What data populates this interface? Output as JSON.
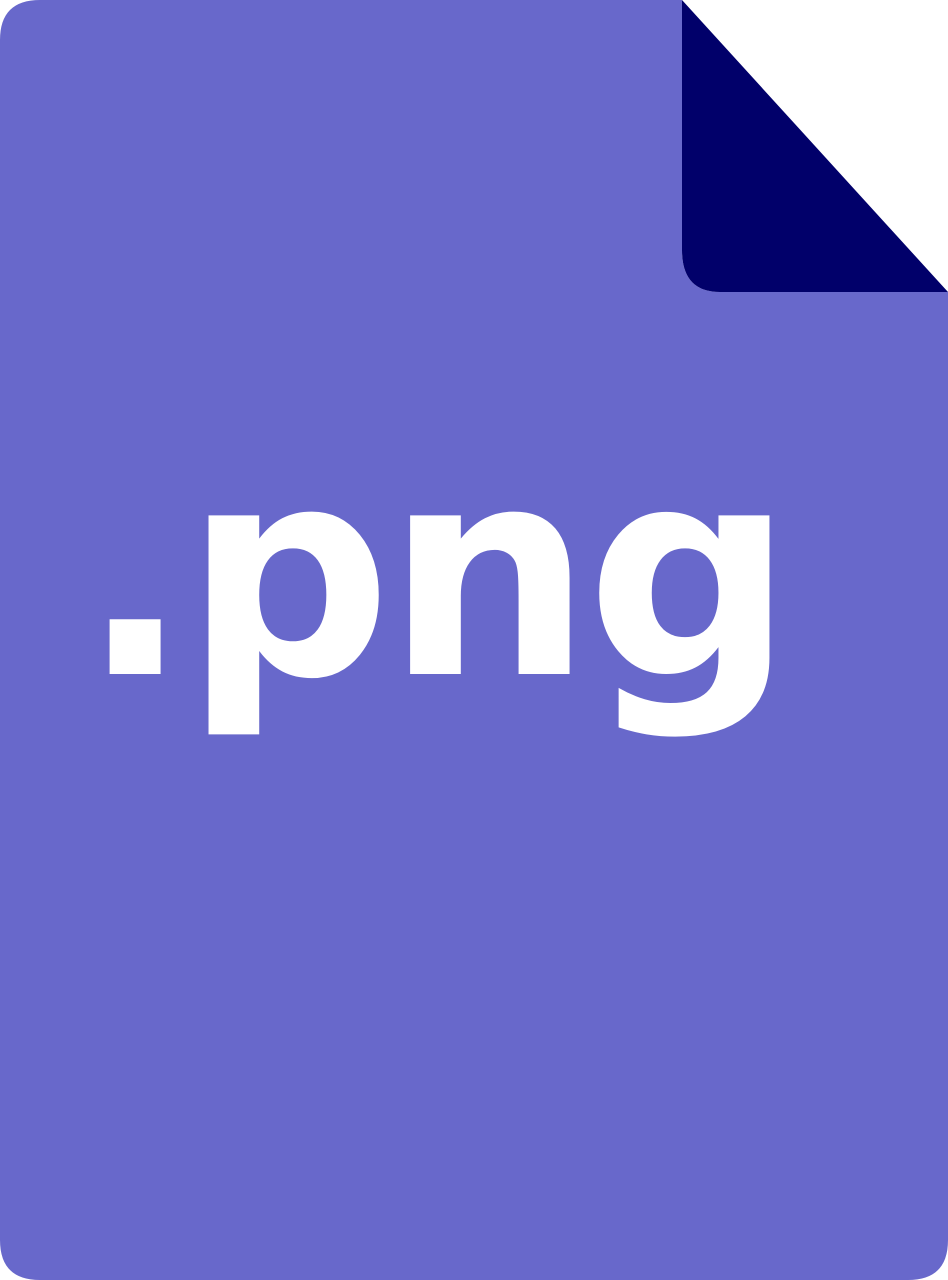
{
  "file_icon": {
    "extension_text": ".png",
    "icon_name": "png-file-icon",
    "colors": {
      "body": "#6868CB",
      "folded_corner": "#01006A",
      "text": "#FFFFFF",
      "background": "#FFFFFF"
    }
  }
}
